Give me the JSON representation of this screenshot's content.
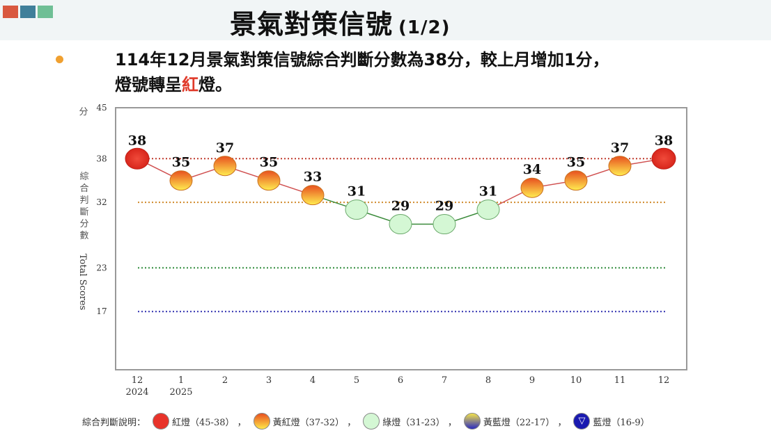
{
  "header": {
    "title": "景氣對策信號",
    "page": "(1/2)",
    "squares": [
      "#d9583f",
      "#3f7f9a",
      "#6fbf95"
    ]
  },
  "summary": {
    "line1": "114年12月景氣對策信號綜合判斷分數為38分，較上月增加1分，",
    "line2_pre": "燈號轉呈",
    "line2_hl": "紅",
    "line2_post": "燈。"
  },
  "chart_data": {
    "type": "line",
    "categories": [
      "12",
      "1",
      "2",
      "3",
      "4",
      "5",
      "6",
      "7",
      "8",
      "9",
      "10",
      "11",
      "12"
    ],
    "category_years": [
      "2024",
      "2025",
      "",
      "",
      "",
      "",
      "",
      "",
      "",
      "",
      "",
      "",
      ""
    ],
    "values": [
      38,
      35,
      37,
      35,
      33,
      31,
      29,
      29,
      31,
      34,
      35,
      37,
      38
    ],
    "ylim": [
      9,
      45
    ],
    "yticks": [
      45,
      38,
      32,
      23,
      17
    ],
    "ylabel_unit": "分",
    "ylabel_zh": "綜合判斷分數",
    "ylabel_en": "Total Scores",
    "thresholds": [
      {
        "value": 38,
        "color": "#c0392b"
      },
      {
        "value": 32,
        "color": "#d08a2a"
      },
      {
        "value": 23,
        "color": "#2e8b3a"
      },
      {
        "value": 17,
        "color": "#3030b0"
      }
    ],
    "signal_colors": {
      "red": "#e8332a",
      "yellowred": "#f6a623",
      "green": "#c8f2c8",
      "yellowblue": "#e8d85a",
      "blue": "#1a1ab0"
    }
  },
  "legend": {
    "label": "綜合判斷說明：",
    "items": [
      {
        "text": "紅燈（45-38）",
        "sep": "，",
        "fill": "#e8332a"
      },
      {
        "text": "黃紅燈（37-32）",
        "sep": "，",
        "fill": "linear-gradient(#e8501f,#ffe84a)"
      },
      {
        "text": "綠燈（31-23）",
        "sep": "，",
        "fill": "#d4f7d4"
      },
      {
        "text": "黃藍燈（22-17）",
        "sep": "，",
        "fill": "linear-gradient(#f4e44a,#2b2bc0)"
      },
      {
        "text": "藍燈（16-9）",
        "sep": "",
        "fill": "#1a1ab0"
      }
    ]
  }
}
